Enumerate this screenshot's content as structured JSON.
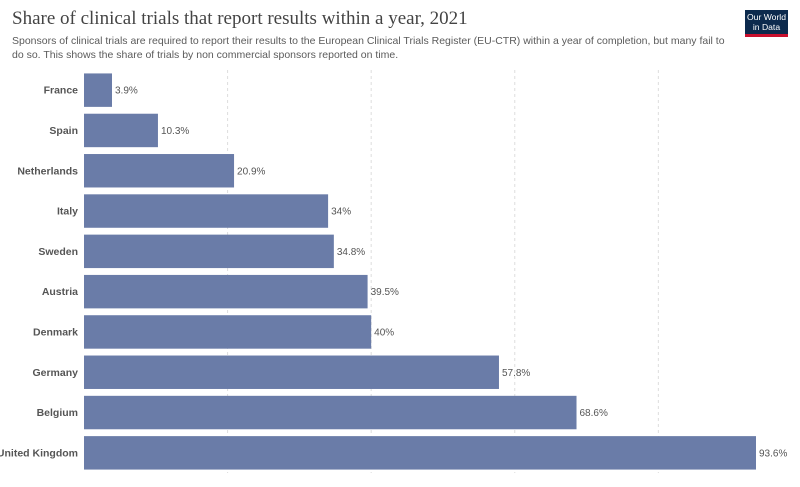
{
  "header": {
    "title": "Share of clinical trials that report results within a year, 2021",
    "subtitle": "Sponsors of clinical trials are required to report their results to the European Clinical Trials Register (EU-CTR) within a year of completion, but many fail to do so. This shows the share of trials by non commercial sponsors reported on time.",
    "logo_line1": "Our World",
    "logo_line2": "in Data"
  },
  "colors": {
    "bar": "#6a7ca8",
    "logo_bg": "#0c2a4d",
    "logo_accent": "#c8102e"
  },
  "chart_data": {
    "type": "bar",
    "orientation": "horizontal",
    "title": "Share of clinical trials that report results within a year, 2021",
    "categories": [
      "France",
      "Spain",
      "Netherlands",
      "Italy",
      "Sweden",
      "Austria",
      "Denmark",
      "Germany",
      "Belgium",
      "United Kingdom"
    ],
    "values": [
      3.9,
      10.3,
      20.9,
      34,
      34.8,
      39.5,
      40,
      57.8,
      68.6,
      93.6
    ],
    "value_labels": [
      "3.9%",
      "10.3%",
      "20.9%",
      "34%",
      "34.8%",
      "39.5%",
      "40%",
      "57.8%",
      "68.6%",
      "93.6%"
    ],
    "xlim": [
      0,
      93.6
    ],
    "gridlines": [
      0,
      20,
      40,
      60,
      80
    ],
    "grid": true,
    "xlabel": "",
    "ylabel": ""
  }
}
